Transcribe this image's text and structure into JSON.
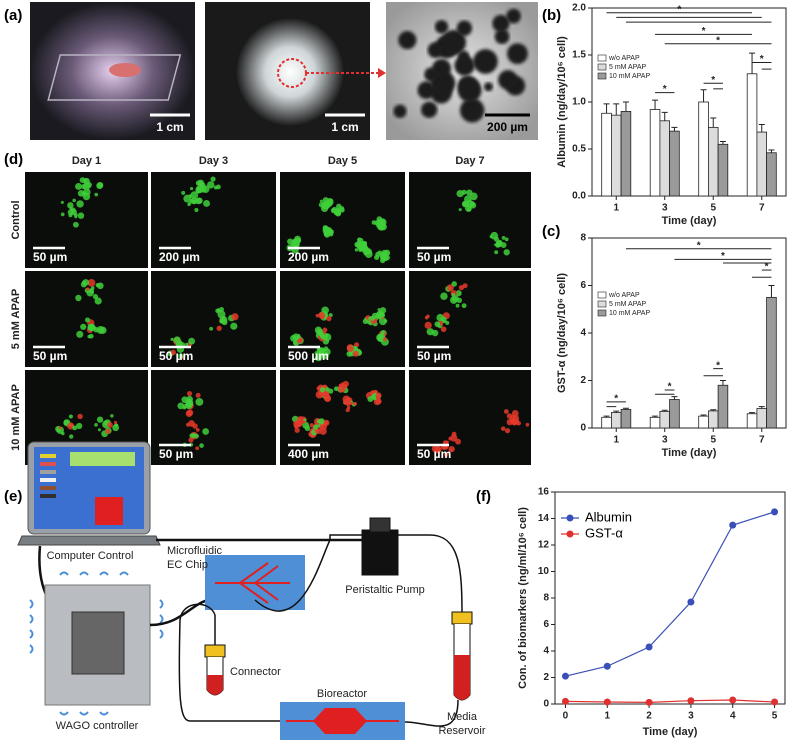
{
  "panel_labels": [
    "(a)",
    "(b)",
    "(c)",
    "(d)",
    "(e)",
    "(f)"
  ],
  "photos": {
    "scale_bars": [
      "1 cm",
      "1 cm",
      "200 µm"
    ]
  },
  "microscopy": {
    "columns": [
      "Day 1",
      "Day 3",
      "Day 5",
      "Day 7"
    ],
    "rows": [
      "Control",
      "5 mM APAP",
      "10 mM APAP"
    ],
    "scale_bars": [
      [
        "50 µm",
        "200 µm",
        "200 µm",
        "50 µm"
      ],
      [
        "50 µm",
        "50 µm",
        "500 µm",
        "50 µm"
      ],
      [
        "50 µm",
        "50 µm",
        "400 µm",
        "50 µm"
      ]
    ]
  },
  "diagram": {
    "computer": "Computer Control",
    "chip": [
      "Microfluidic",
      "EC Chip"
    ],
    "pump": "Peristaltic Pump",
    "connector": "Connector",
    "controller": "WAGO controller",
    "bioreactor": "Bioreactor",
    "reservoir": [
      "Media",
      "Reservoir"
    ]
  },
  "chart_data": [
    {
      "type": "bar",
      "ylabel": "Albumin (ng/day/10⁶ cell)",
      "xlabel": "Time (day)",
      "categories": [
        "1",
        "3",
        "5",
        "7"
      ],
      "series": [
        {
          "name": "w/o APAP",
          "color": "#ffffff",
          "values": [
            0.88,
            0.92,
            1.0,
            1.3
          ],
          "errors": [
            0.1,
            0.1,
            0.13,
            0.22
          ]
        },
        {
          "name": "5 mM APAP",
          "color": "#dcdcdc",
          "values": [
            0.86,
            0.8,
            0.73,
            0.68
          ],
          "errors": [
            0.12,
            0.09,
            0.1,
            0.08
          ]
        },
        {
          "name": "10 mM APAP",
          "color": "#9a9a9a",
          "values": [
            0.9,
            0.69,
            0.55,
            0.46
          ],
          "errors": [
            0.1,
            0.04,
            0.03,
            0.03
          ]
        }
      ],
      "ylim": [
        0,
        2
      ],
      "yticks": [
        {
          "value": 0,
          "label": "0.0"
        },
        0.5,
        {
          "value": 1,
          "label": "1.0"
        },
        1.5,
        {
          "value": 2,
          "label": "2.0"
        }
      ],
      "legend": "upper left",
      "annotations": [
        "*",
        "*",
        "*",
        "*",
        "*",
        "*"
      ]
    },
    {
      "type": "bar",
      "ylabel": "GST-α (ng/day/10⁶ cell)",
      "xlabel": "Time (day)",
      "categories": [
        "1",
        "3",
        "5",
        "7"
      ],
      "series": [
        {
          "name": "w/o APAP",
          "color": "#ffffff",
          "values": [
            0.45,
            0.45,
            0.5,
            0.6
          ],
          "errors": [
            0.05,
            0.05,
            0.05,
            0.05
          ]
        },
        {
          "name": "5 mM APAP",
          "color": "#dcdcdc",
          "values": [
            0.65,
            0.7,
            0.72,
            0.82
          ],
          "errors": [
            0.06,
            0.05,
            0.05,
            0.08
          ]
        },
        {
          "name": "10 mM APAP",
          "color": "#9a9a9a",
          "values": [
            0.78,
            1.2,
            1.8,
            5.5
          ],
          "errors": [
            0.05,
            0.12,
            0.2,
            0.5
          ]
        }
      ],
      "ylim": [
        0,
        8
      ],
      "yticks": [
        0,
        2,
        4,
        6,
        8
      ],
      "legend": "upper left",
      "annotations": [
        "*",
        "*",
        "*",
        "*",
        "*",
        "*"
      ]
    },
    {
      "type": "line",
      "ylabel": "Con. of biomarkers (ng/ml/10⁶ cell)",
      "xlabel": "Time (day)",
      "x": [
        0,
        1,
        2,
        3,
        4,
        5
      ],
      "series": [
        {
          "name": "Albumin",
          "color": "#3a50b8",
          "values": [
            2.1,
            2.85,
            4.3,
            7.7,
            13.5,
            14.5
          ]
        },
        {
          "name": "GST-α",
          "color": "#e03030",
          "values": [
            0.2,
            0.15,
            0.12,
            0.25,
            0.3,
            0.15
          ]
        }
      ],
      "xlim": [
        -0.25,
        5.25
      ],
      "xticks": [
        0,
        1,
        2,
        3,
        4,
        5
      ],
      "ylim": [
        0,
        16
      ],
      "yticks": [
        0,
        2,
        4,
        6,
        8,
        10,
        12,
        14,
        16
      ],
      "legend": "upper left"
    }
  ]
}
